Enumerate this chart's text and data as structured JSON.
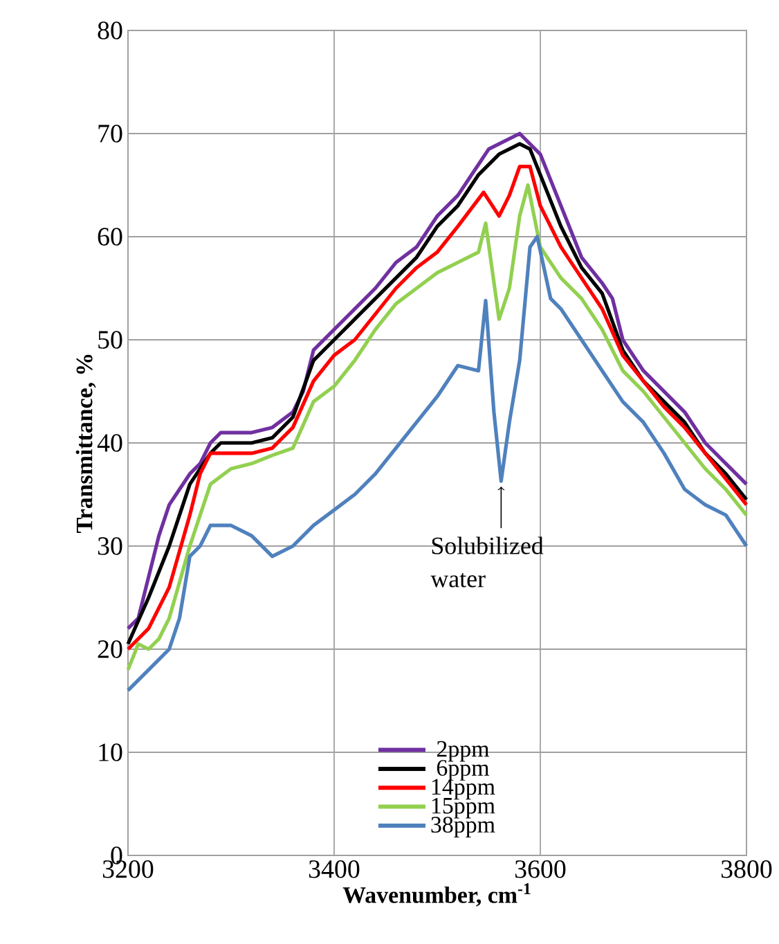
{
  "chart_data": {
    "type": "line",
    "xlabel": "Wavenumber, cm$^{-1}$",
    "ylabel": "Transmittance, %",
    "xlim": [
      3200,
      3800
    ],
    "xticks": [
      3200,
      3400,
      3600,
      3800
    ],
    "ylim": [
      0,
      80
    ],
    "yticks": [
      0,
      10,
      20,
      30,
      40,
      50,
      60,
      70,
      80
    ],
    "grid": true,
    "legend": "bottom",
    "marker": "none",
    "line_style": "solid",
    "annotations": [
      {
        "text": "Solubilized water",
        "x": 3562,
        "y": 36.3
      }
    ],
    "series": [
      {
        "name": "2ppm",
        "color": "#7030a0",
        "x": [
          3200,
          3210,
          3220,
          3230,
          3240,
          3260,
          3270,
          3280,
          3290,
          3320,
          3340,
          3360,
          3370,
          3380,
          3400,
          3420,
          3440,
          3460,
          3480,
          3500,
          3520,
          3540,
          3550,
          3570,
          3580,
          3600,
          3620,
          3640,
          3660,
          3670,
          3680,
          3700,
          3720,
          3740,
          3760,
          3780,
          3800
        ],
        "values": [
          22,
          23,
          27,
          31,
          34,
          37,
          38,
          40,
          41,
          41,
          41.5,
          43,
          45,
          49,
          51,
          53,
          55,
          57.5,
          59,
          62,
          64,
          67,
          68.5,
          69.5,
          70,
          68,
          63,
          58,
          55.5,
          54,
          50,
          47,
          45,
          43,
          40,
          38,
          36
        ]
      },
      {
        "name": "6ppm",
        "color": "#000000",
        "x": [
          3200,
          3220,
          3240,
          3260,
          3280,
          3290,
          3320,
          3340,
          3360,
          3380,
          3400,
          3420,
          3440,
          3460,
          3480,
          3500,
          3520,
          3540,
          3560,
          3580,
          3590,
          3600,
          3620,
          3640,
          3660,
          3680,
          3700,
          3720,
          3740,
          3760,
          3780,
          3800
        ],
        "values": [
          20.5,
          25,
          30,
          36,
          39,
          40,
          40,
          40.5,
          42.5,
          48,
          50,
          52,
          54,
          56,
          58,
          61,
          63,
          66,
          68,
          69,
          68.5,
          66,
          61,
          57,
          54.5,
          49,
          46,
          44,
          42,
          39,
          37,
          34.5
        ]
      },
      {
        "name": "14ppm",
        "color": "#ff0000",
        "x": [
          3200,
          3220,
          3240,
          3260,
          3270,
          3280,
          3320,
          3340,
          3360,
          3380,
          3400,
          3420,
          3440,
          3460,
          3480,
          3500,
          3520,
          3545,
          3560,
          3570,
          3580,
          3590,
          3600,
          3620,
          3640,
          3660,
          3680,
          3700,
          3720,
          3740,
          3760,
          3780,
          3800
        ],
        "values": [
          20,
          22,
          26,
          33,
          37,
          39,
          39,
          39.5,
          41.5,
          46,
          48.5,
          50,
          52.5,
          55,
          57,
          58.5,
          61,
          64.3,
          62,
          64,
          66.8,
          66.8,
          63,
          59,
          56,
          53,
          48.5,
          46,
          43.5,
          41.5,
          39,
          36.5,
          34
        ]
      },
      {
        "name": "15ppm",
        "color": "#92d050",
        "x": [
          3200,
          3210,
          3220,
          3230,
          3240,
          3260,
          3280,
          3300,
          3320,
          3340,
          3360,
          3380,
          3400,
          3420,
          3440,
          3460,
          3480,
          3500,
          3520,
          3540,
          3547,
          3560,
          3570,
          3580,
          3588,
          3600,
          3620,
          3640,
          3660,
          3680,
          3700,
          3720,
          3740,
          3760,
          3780,
          3800
        ],
        "values": [
          18,
          20.5,
          20,
          21,
          23,
          30,
          36,
          37.5,
          38,
          38.8,
          39.5,
          44,
          45.5,
          48,
          51,
          53.5,
          55,
          56.5,
          57.5,
          58.5,
          61.3,
          52,
          55,
          62,
          65,
          59,
          56,
          54,
          51,
          47,
          45,
          42.5,
          40,
          37.5,
          35.5,
          33
        ]
      },
      {
        "name": "38ppm",
        "color": "#4f81bd",
        "x": [
          3200,
          3220,
          3240,
          3250,
          3260,
          3270,
          3280,
          3300,
          3320,
          3340,
          3360,
          3380,
          3400,
          3420,
          3440,
          3460,
          3480,
          3500,
          3520,
          3540,
          3547,
          3555,
          3562,
          3570,
          3580,
          3590,
          3597,
          3610,
          3620,
          3640,
          3660,
          3680,
          3700,
          3720,
          3740,
          3760,
          3780,
          3800
        ],
        "values": [
          16,
          18,
          20,
          23,
          29,
          30,
          32,
          32,
          31,
          29,
          30,
          32,
          33.5,
          35,
          37,
          39.5,
          42,
          44.5,
          47.5,
          47,
          53.8,
          43,
          36.3,
          42,
          48,
          59,
          60,
          54,
          53,
          50,
          47,
          44,
          42,
          39,
          35.5,
          34,
          33,
          30
        ]
      }
    ]
  }
}
